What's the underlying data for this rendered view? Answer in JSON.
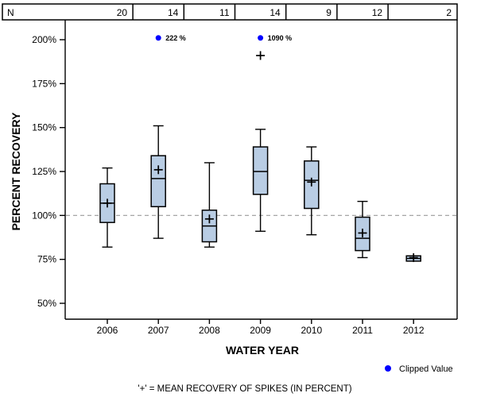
{
  "colors": {
    "box_fill": "#b9cde4",
    "box_border": "#000000",
    "clipped_dot": "#0000ff",
    "reference_dash": "#999999",
    "axis": "#000000"
  },
  "count_row": {
    "label": "N",
    "values": [
      "20",
      "14",
      "11",
      "14",
      "9",
      "12",
      "2"
    ]
  },
  "legend": {
    "clipped_label": "Clipped Value"
  },
  "footnote": "'+' = MEAN RECOVERY OF SPIKES (IN PERCENT)",
  "chart_data": {
    "type": "boxplot",
    "title": "",
    "xlabel": "WATER YEAR",
    "ylabel": "PERCENT RECOVERY",
    "categories": [
      "2006",
      "2007",
      "2008",
      "2009",
      "2010",
      "2011",
      "2012"
    ],
    "y_tick_values": [
      200,
      175,
      150,
      125,
      100,
      75,
      50
    ],
    "y_tick_labels": [
      "200%",
      "175%",
      "150%",
      "125%",
      "100%",
      "75%",
      "50%"
    ],
    "ylim": [
      41,
      211
    ],
    "reference_line_percent": 100,
    "grid": "single dashed horizontal line at 100%",
    "legend_position": "bottom-right",
    "series": [
      {
        "year": "2006",
        "n": 20,
        "whisker_low": 82,
        "q1": 96,
        "median": 107,
        "q3": 118,
        "whisker_high": 127,
        "mean": 107
      },
      {
        "year": "2007",
        "n": 14,
        "whisker_low": 87,
        "q1": 105,
        "median": 121,
        "q3": 134,
        "whisker_high": 151,
        "mean": 126,
        "clipped_label": "222 %",
        "clipped_plot_percent": 201
      },
      {
        "year": "2008",
        "n": 11,
        "whisker_low": 82,
        "q1": 85,
        "median": 94,
        "q3": 103,
        "whisker_high": 130,
        "mean": 98
      },
      {
        "year": "2009",
        "n": 14,
        "whisker_low": 91,
        "q1": 112,
        "median": 125,
        "q3": 139,
        "whisker_high": 149,
        "mean": 191,
        "clipped_label": "1090 %",
        "clipped_plot_percent": 201
      },
      {
        "year": "2010",
        "n": 9,
        "whisker_low": 89,
        "q1": 104,
        "median": 120,
        "q3": 131,
        "whisker_high": 139,
        "mean": 119
      },
      {
        "year": "2011",
        "n": 12,
        "whisker_low": 76,
        "q1": 80,
        "median": 87,
        "q3": 99,
        "whisker_high": 108,
        "mean": 90
      },
      {
        "year": "2012",
        "n": 2,
        "whisker_low": 74,
        "q1": 74,
        "median": 75.5,
        "q3": 77,
        "whisker_high": 77,
        "mean": 76
      }
    ]
  }
}
